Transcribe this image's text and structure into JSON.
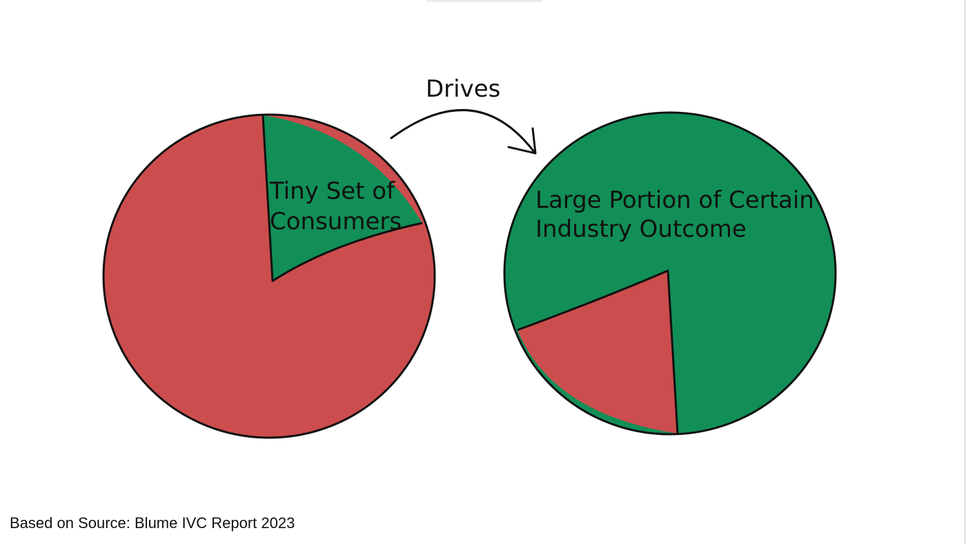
{
  "diagram": {
    "arrow_label": "Drives",
    "left_pie": {
      "label_lines": [
        "Tiny Set of",
        "Consumers"
      ],
      "highlight_share": 0.19
    },
    "right_pie": {
      "label_lines": [
        "Large Portion of Certain",
        "Industry Outcome"
      ],
      "highlight_share": 0.81
    }
  },
  "colors": {
    "green": "#118f57",
    "red": "#cc4d4d",
    "outline": "#111111"
  },
  "footer": {
    "source": "Based on Source: Blume IVC Report 2023"
  }
}
